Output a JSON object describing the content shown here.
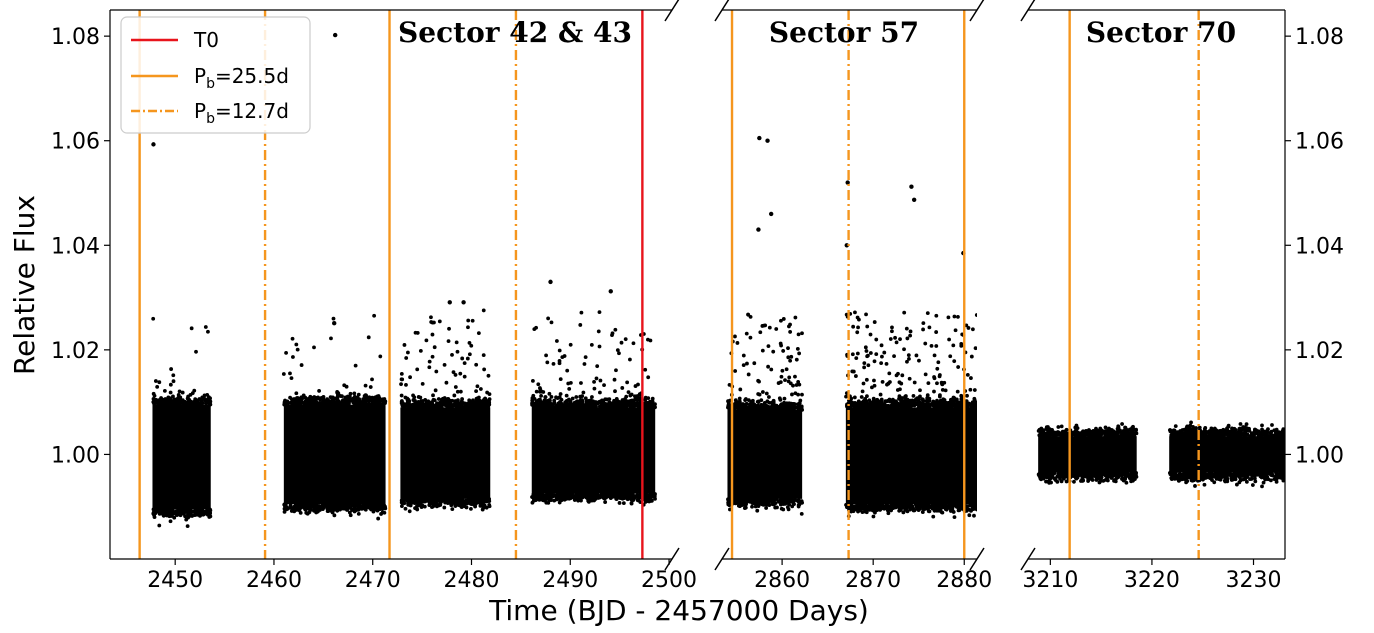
{
  "chart_data": {
    "type": "scatter",
    "xlabel": "Time (BJD - 2457000 Days)",
    "ylabel": "Relative Flux",
    "ylim": [
      0.98,
      1.085
    ],
    "grid": false,
    "legend": {
      "position": "top-left",
      "entries": [
        {
          "label": "T0",
          "color": "#e8141c",
          "style": "solid"
        },
        {
          "label_main": "P",
          "label_sub": "b",
          "label_rest": "=25.5d",
          "color": "#f5961e",
          "style": "solid"
        },
        {
          "label_main": "P",
          "label_sub": "b",
          "label_rest": "=12.7d",
          "color": "#f5961e",
          "style": "dashdot"
        }
      ]
    },
    "y_ticks": [
      {
        "value": 1.0,
        "label": "1.00"
      },
      {
        "value": 1.02,
        "label": "1.02"
      },
      {
        "value": 1.04,
        "label": "1.04"
      },
      {
        "value": 1.06,
        "label": "1.06"
      },
      {
        "value": 1.08,
        "label": "1.08"
      }
    ],
    "panels": [
      {
        "id": "sector-42-43",
        "title": "Sector 42 & 43",
        "xlim": [
          2443.4,
          2500.3
        ],
        "x_ticks": [
          {
            "value": 2450,
            "label": "2450"
          },
          {
            "value": 2460,
            "label": "2460"
          },
          {
            "value": 2470,
            "label": "2470"
          },
          {
            "value": 2480,
            "label": "2480"
          },
          {
            "value": 2490,
            "label": "2490"
          },
          {
            "value": 2500,
            "label": "2500"
          }
        ],
        "segments": [
          {
            "x_start": 2447.7,
            "x_end": 2453.6,
            "flux_low": 0.9895,
            "flux_high": 1.0095,
            "scatter": "low"
          },
          {
            "x_start": 2461.0,
            "x_end": 2471.3,
            "flux_low": 0.9905,
            "flux_high": 1.0095,
            "scatter": "low"
          },
          {
            "x_start": 2472.8,
            "x_end": 2481.9,
            "flux_low": 0.9915,
            "flux_high": 1.009,
            "scatter": "medium"
          },
          {
            "x_start": 2486.1,
            "x_end": 2498.6,
            "flux_low": 0.9925,
            "flux_high": 1.009,
            "scatter": "medium"
          }
        ],
        "outliers": [
          {
            "x": 2447.8,
            "y": 1.0593
          },
          {
            "x": 2466.2,
            "y": 1.0802
          },
          {
            "x": 2466.1,
            "y": 1.0251
          },
          {
            "x": 2477.8,
            "y": 1.0291
          },
          {
            "x": 2479.2,
            "y": 1.0291
          },
          {
            "x": 2488.0,
            "y": 1.033
          },
          {
            "x": 2494.1,
            "y": 1.0312
          }
        ],
        "vlines": [
          {
            "x": 2446.4,
            "kind": "P25"
          },
          {
            "x": 2459.1,
            "kind": "P12"
          },
          {
            "x": 2471.7,
            "kind": "P25"
          },
          {
            "x": 2484.5,
            "kind": "P12"
          },
          {
            "x": 2497.3,
            "kind": "T0"
          }
        ]
      },
      {
        "id": "sector-57",
        "title": "Sector 57",
        "xlim": [
          2853.4,
          2881.4
        ],
        "x_ticks": [
          {
            "value": 2860,
            "label": "2860"
          },
          {
            "value": 2870,
            "label": "2870"
          },
          {
            "value": 2880,
            "label": "2880"
          }
        ],
        "segments": [
          {
            "x_start": 2854.0,
            "x_end": 2862.2,
            "flux_low": 0.9915,
            "flux_high": 1.0085,
            "scatter": "high"
          },
          {
            "x_start": 2867.0,
            "x_end": 2881.4,
            "flux_low": 0.9905,
            "flux_high": 1.009,
            "scatter": "high"
          }
        ],
        "outliers": [
          {
            "x": 2857.5,
            "y": 1.0605
          },
          {
            "x": 2858.4,
            "y": 1.06
          },
          {
            "x": 2858.8,
            "y": 1.046
          },
          {
            "x": 2857.4,
            "y": 1.043
          },
          {
            "x": 2867.2,
            "y": 1.052
          },
          {
            "x": 2867.1,
            "y": 1.04
          },
          {
            "x": 2874.2,
            "y": 1.0512
          },
          {
            "x": 2874.5,
            "y": 1.0487
          },
          {
            "x": 2879.9,
            "y": 1.0385
          }
        ],
        "vlines": [
          {
            "x": 2854.5,
            "kind": "P25"
          },
          {
            "x": 2867.3,
            "kind": "P12"
          },
          {
            "x": 2880.0,
            "kind": "P25"
          }
        ]
      },
      {
        "id": "sector-70",
        "title": "Sector 70",
        "xlim": [
          3207.8,
          3233.1
        ],
        "x_ticks": [
          {
            "value": 3210,
            "label": "3210"
          },
          {
            "value": 3220,
            "label": "3220"
          },
          {
            "value": 3230,
            "label": "3230"
          }
        ],
        "segments": [
          {
            "x_start": 3208.8,
            "x_end": 3218.5,
            "flux_low": 0.9965,
            "flux_high": 1.0035,
            "scatter": "none"
          },
          {
            "x_start": 3221.7,
            "x_end": 3233.1,
            "flux_low": 0.9965,
            "flux_high": 1.0035,
            "scatter": "none"
          }
        ],
        "outliers": [],
        "vlines": [
          {
            "x": 3211.9,
            "kind": "P25"
          },
          {
            "x": 3224.6,
            "kind": "P12"
          }
        ]
      }
    ]
  }
}
